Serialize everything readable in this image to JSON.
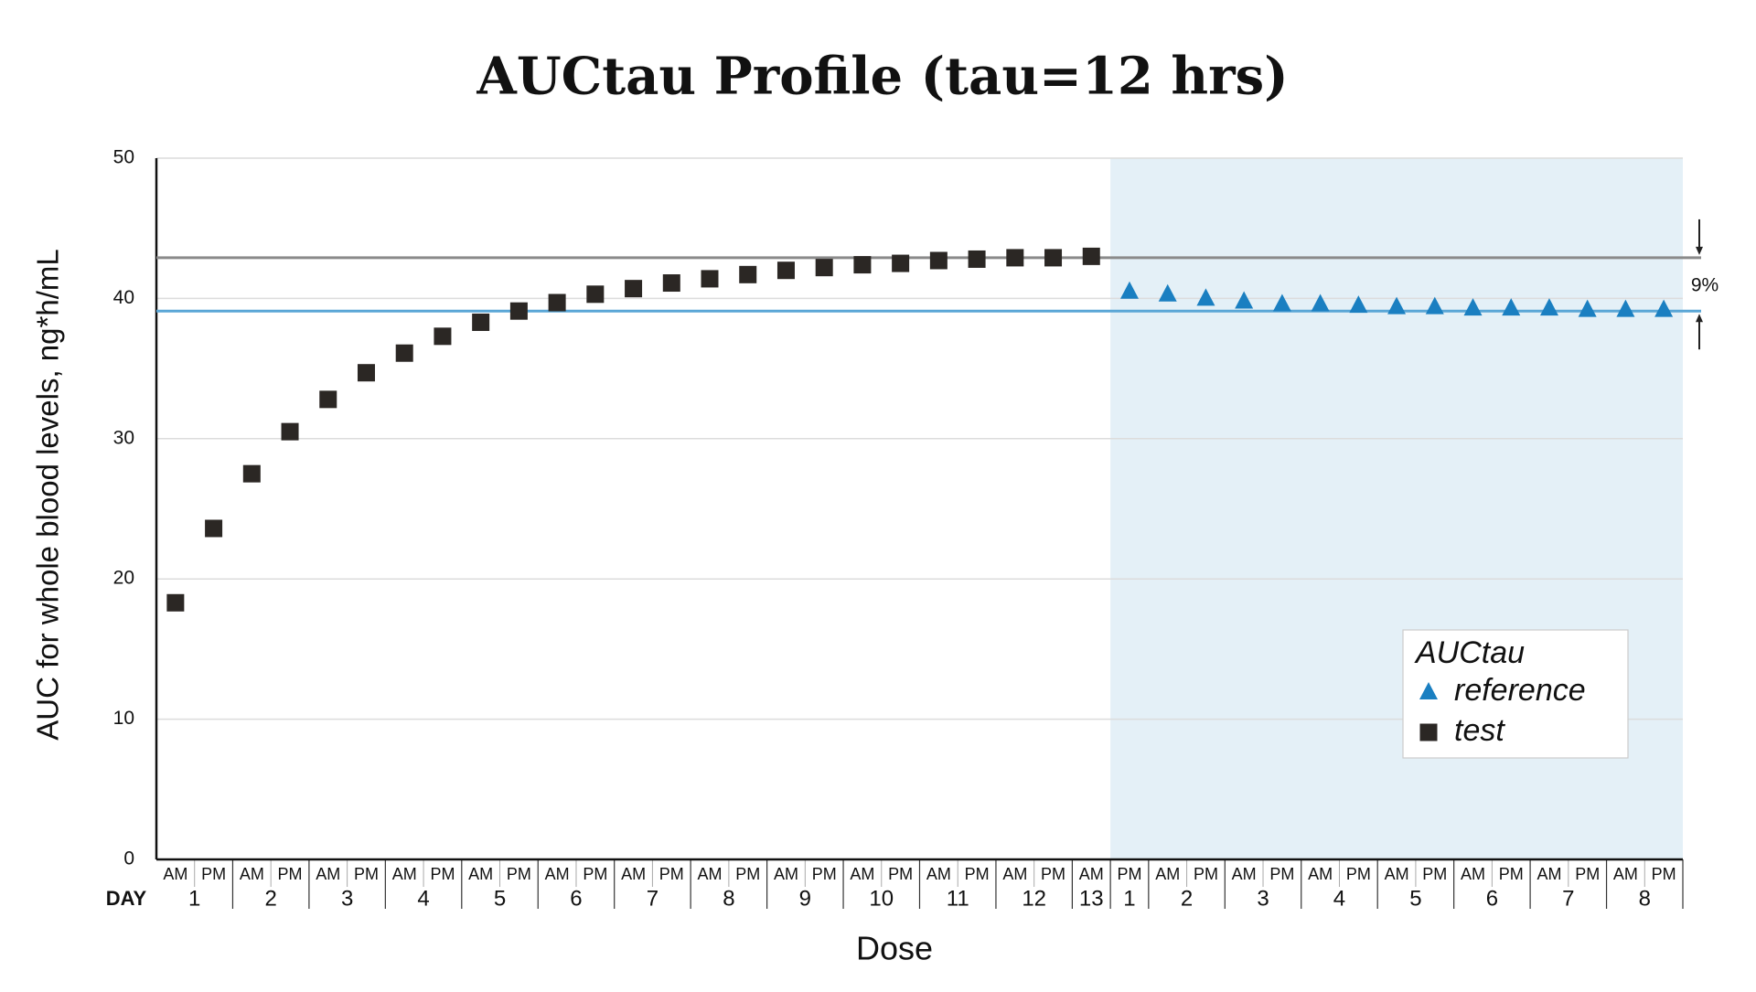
{
  "chart_data": {
    "type": "scatter",
    "title": "AUCtau Profile (tau=12 hrs)",
    "x_label": "Dose",
    "y_label": "AUC for whole blood levels, ng*h/mL",
    "day_row_label": "DAY",
    "categories": [
      "AM",
      "PM",
      "AM",
      "PM",
      "AM",
      "PM",
      "AM",
      "PM",
      "AM",
      "PM",
      "AM",
      "PM",
      "AM",
      "PM",
      "AM",
      "PM",
      "AM",
      "PM",
      "AM",
      "PM",
      "AM",
      "PM",
      "AM",
      "PM",
      "AM",
      "PM",
      "AM",
      "PM",
      "AM",
      "PM",
      "AM",
      "PM",
      "AM",
      "PM",
      "AM",
      "PM",
      "AM",
      "PM",
      "AM",
      "PM"
    ],
    "days": [
      1,
      1,
      2,
      2,
      3,
      3,
      4,
      4,
      5,
      5,
      6,
      6,
      7,
      7,
      8,
      8,
      9,
      9,
      10,
      10,
      11,
      11,
      12,
      12,
      13,
      1,
      2,
      2,
      3,
      3,
      4,
      4,
      5,
      5,
      6,
      6,
      7,
      7,
      8,
      8
    ],
    "series": [
      {
        "name": "reference",
        "color": "#1a7fc1",
        "marker": "triangle",
        "values": [
          null,
          null,
          null,
          null,
          null,
          null,
          null,
          null,
          null,
          null,
          null,
          null,
          null,
          null,
          null,
          null,
          null,
          null,
          null,
          null,
          null,
          null,
          null,
          null,
          null,
          40.5,
          40.3,
          40.0,
          39.8,
          39.6,
          39.6,
          39.5,
          39.4,
          39.4,
          39.3,
          39.3,
          39.3,
          39.2,
          39.2,
          39.2
        ]
      },
      {
        "name": "test",
        "color": "#2b2724",
        "marker": "square",
        "values": [
          18.3,
          23.6,
          27.5,
          30.5,
          32.8,
          34.7,
          36.1,
          37.3,
          38.3,
          39.1,
          39.7,
          40.3,
          40.7,
          41.1,
          41.4,
          41.7,
          42.0,
          42.2,
          42.4,
          42.5,
          42.7,
          42.8,
          42.9,
          42.9,
          43.0,
          null,
          null,
          null,
          null,
          null,
          null,
          null,
          null,
          null,
          null,
          null,
          null,
          null,
          null,
          null
        ]
      }
    ],
    "reference_lines": [
      {
        "value": 42.9,
        "color": "#8a8a8a"
      },
      {
        "value": 39.1,
        "color": "#5aa6d6"
      }
    ],
    "annotation": "9%",
    "legend_title": "AUCtau",
    "legend": "lower right",
    "shade_color": "#e4f0f7",
    "ylim": [
      0,
      50
    ],
    "yticks": [
      0,
      10,
      20,
      30,
      40,
      50
    ],
    "grid": true
  }
}
